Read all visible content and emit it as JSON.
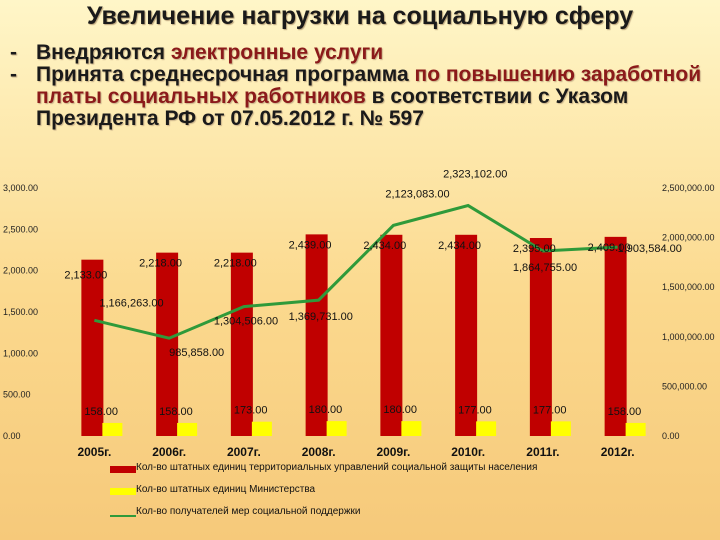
{
  "title": "Увеличение нагрузки на социальную сферу",
  "bullets": [
    {
      "dash": "-",
      "plain": "Внедряются ",
      "highlight": "электронные услуги",
      "rest": ""
    },
    {
      "dash": "-",
      "plain": "Принята среднесрочная программа ",
      "highlight": "по повышению заработной платы социальных работников",
      "rest": " в соответствии с Указом Президента РФ от 07.05.2012 г. № 597"
    }
  ],
  "colors": {
    "bars_red": "#c00000",
    "bars_yellow": "#ffff00",
    "line_green": "#2f9a3a",
    "highlight_text": "#8b1a1a"
  },
  "chart_data": {
    "type": "bar",
    "categories": [
      "2005г.",
      "2006г.",
      "2007г.",
      "2008г.",
      "2009г.",
      "2010г.",
      "2011г.",
      "2012г."
    ],
    "series": [
      {
        "name": "Кол-во штатных единиц территориальных управлений социальной защиты населения",
        "axis": "left",
        "chart": "bar",
        "color": "#c00000",
        "values": [
          2133,
          2218,
          2218,
          2439,
          2434,
          2434,
          2395,
          2409
        ],
        "labels": [
          "2,133.00",
          "2,218.00",
          "2,218.00",
          "2,439.00",
          "2,434.00",
          "2,434.00",
          "2,395.00",
          "2,409.00"
        ]
      },
      {
        "name": "Кол-во штатных единиц Министерства",
        "axis": "left",
        "chart": "bar",
        "color": "#ffff00",
        "values": [
          158,
          158,
          173,
          180,
          180,
          177,
          177,
          158
        ],
        "labels": [
          "158.00",
          "158.00",
          "173.00",
          "180.00",
          "180.00",
          "177.00",
          "177.00",
          "158.00"
        ]
      },
      {
        "name": "Кол-во получателей мер социальной поддержки",
        "axis": "right",
        "chart": "line",
        "color": "#2f9a3a",
        "values": [
          1166263,
          985858,
          1304506,
          1369731,
          2123083,
          2323102,
          1864755,
          1903584
        ],
        "labels": [
          "1,166,263.00",
          "985,858.00",
          "1,304,506.00",
          "1,369,731.00",
          "2,123,083.00",
          "2,323,102.00",
          "1,864,755.00",
          "1,903,584.00"
        ]
      }
    ],
    "y_left": {
      "ylim": [
        0,
        3000
      ],
      "ticks": [
        "0.00",
        "500.00",
        "1,000.00",
        "1,500.00",
        "2,000.00",
        "2,500.00",
        "3,000.00"
      ]
    },
    "y_right": {
      "ylim": [
        0,
        2500000
      ],
      "ticks": [
        "0.00",
        "500,000.00",
        "1,000,000.00",
        "1,500,000.00",
        "2,000,000.00",
        "2,500,000.00"
      ]
    },
    "legend": "bottom",
    "grid": false
  }
}
